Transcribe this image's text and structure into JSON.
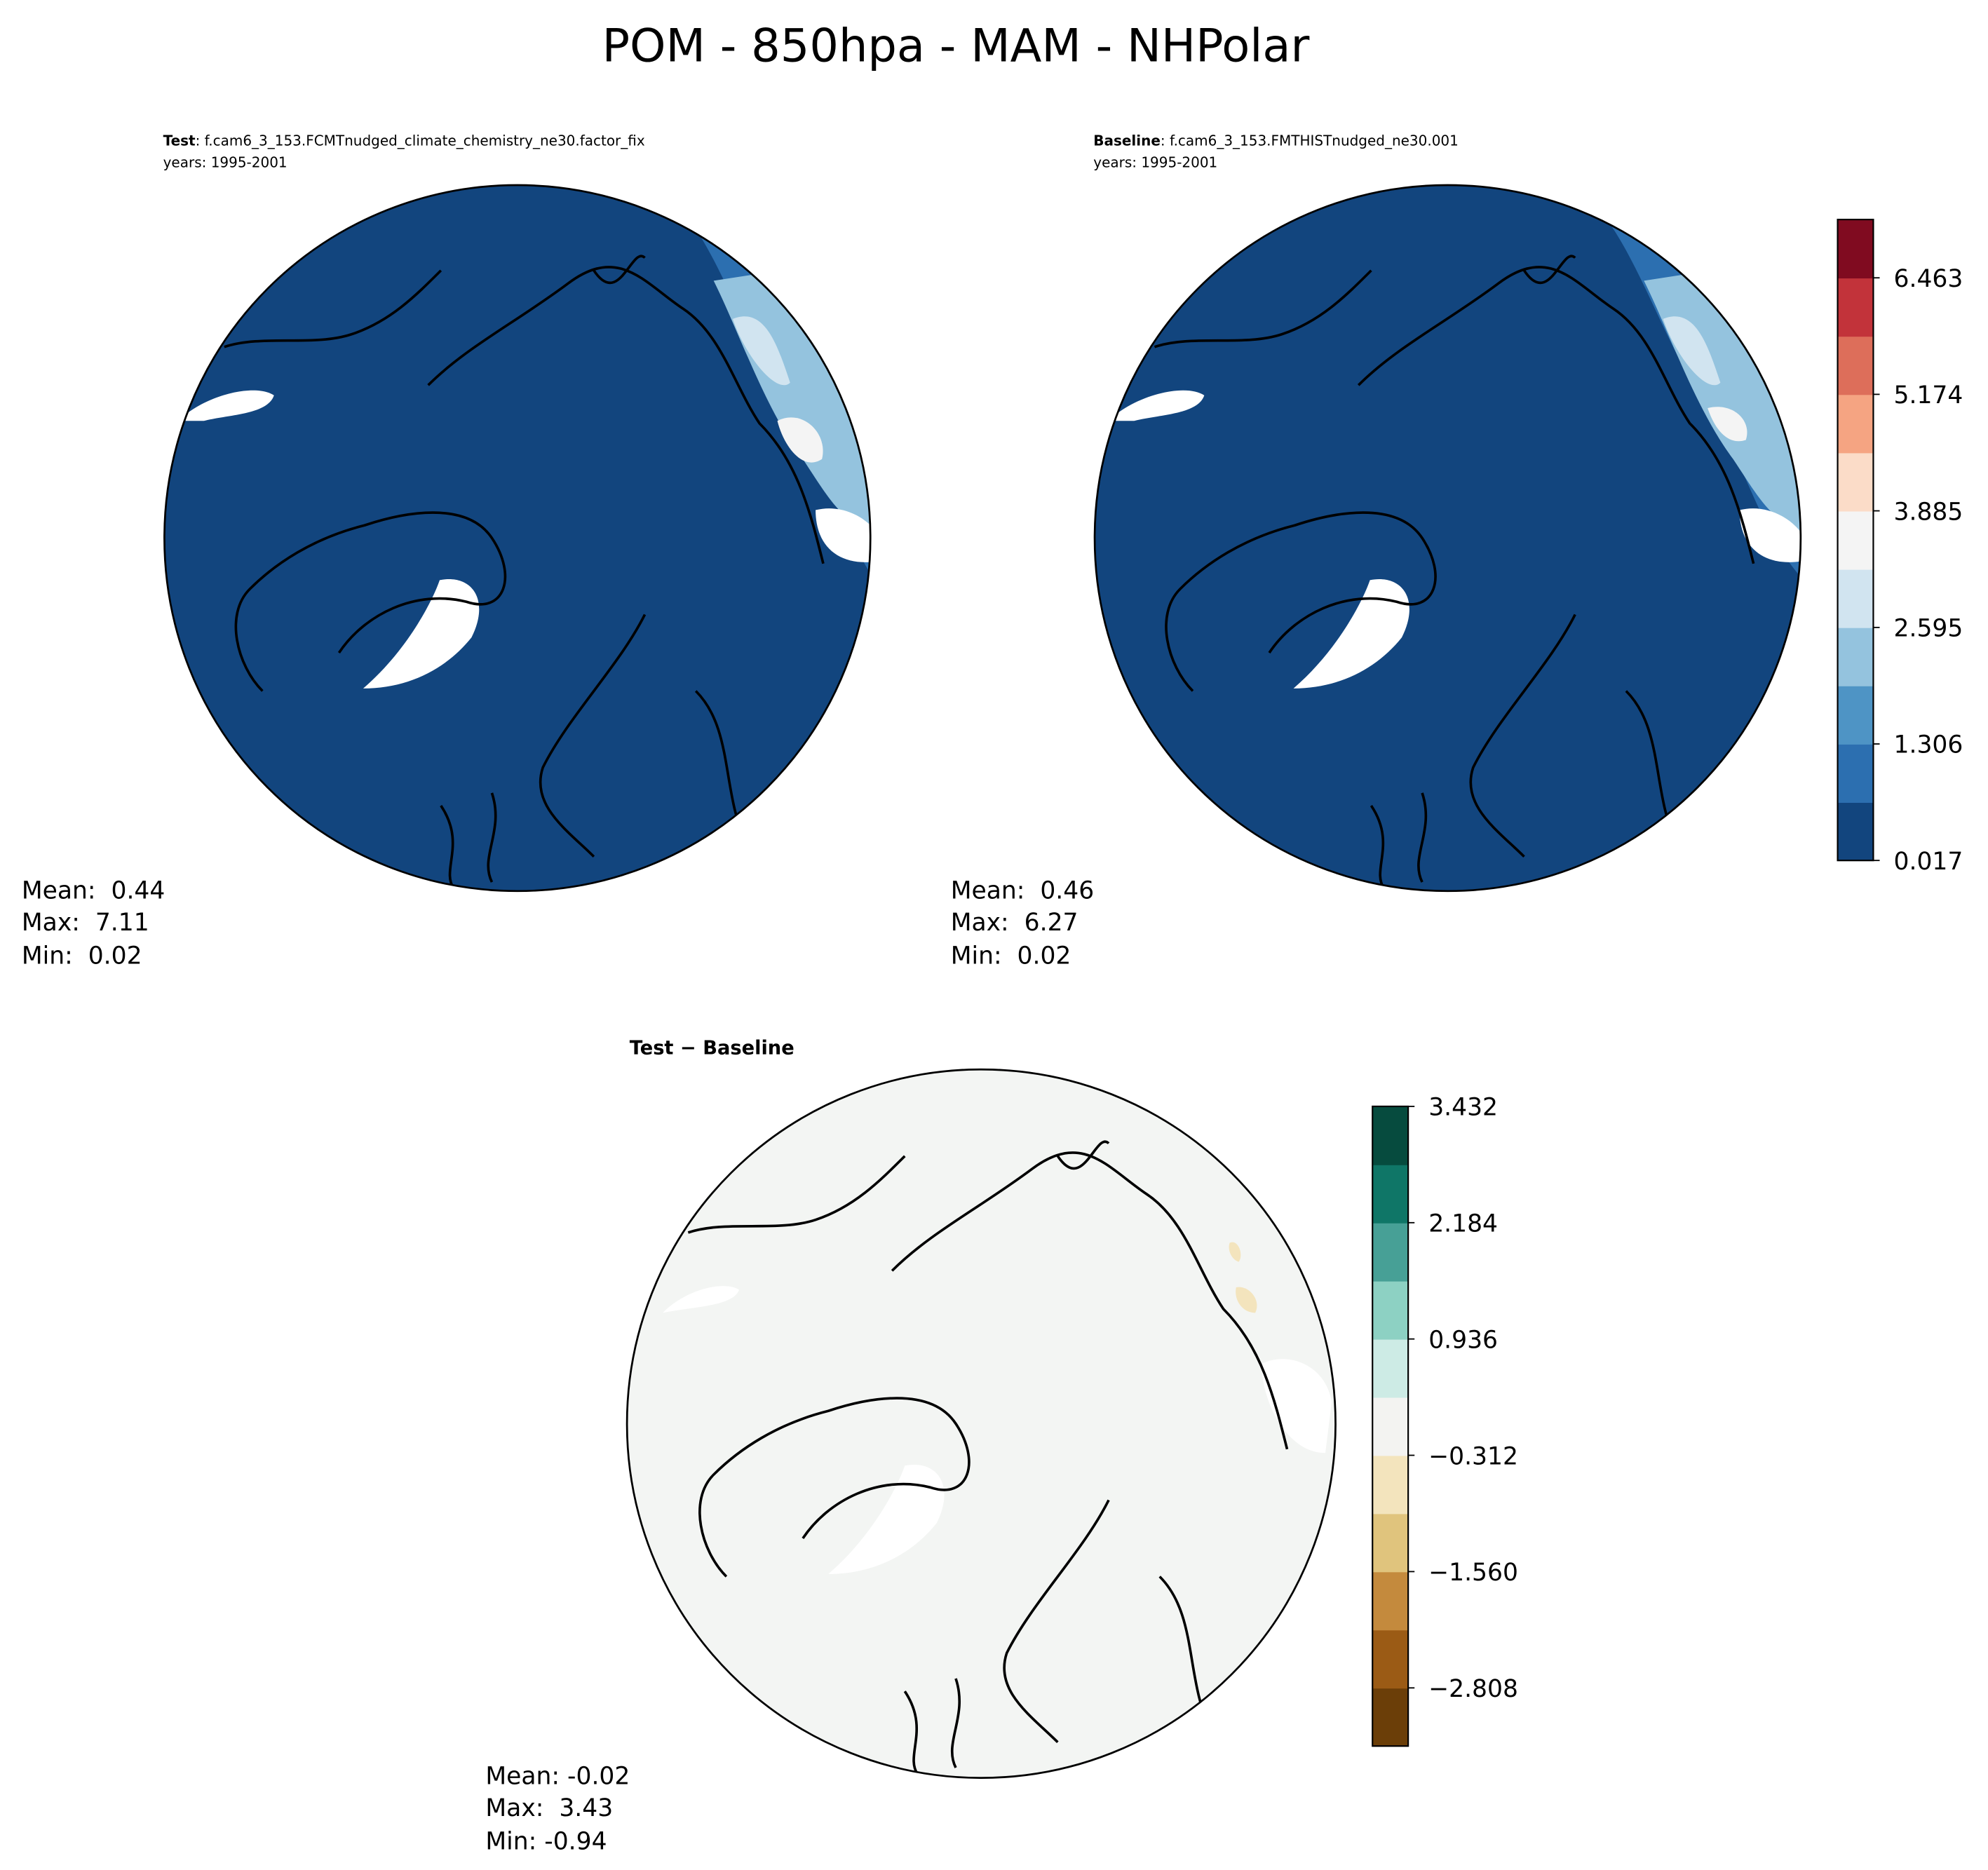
{
  "title": "POM - 850hpa - MAM - NHPolar",
  "panels": [
    {
      "title_bold": "Test",
      "title_rest": ": f.cam6_3_153.FCMTnudged_climate_chemistry_ne30.factor_fix",
      "years": "years: 1995-2001",
      "stats": [
        "Mean:  0.44",
        "Max:  7.11",
        "Min:  0.02"
      ]
    },
    {
      "title_bold": "Baseline",
      "title_rest": ": f.cam6_3_153.FMTHISTnudged_ne30.001",
      "years": "years: 1995-2001",
      "stats": [
        "Mean:  0.46",
        "Max:  6.27",
        "Min:  0.02"
      ]
    },
    {
      "title_bold": "Test − Baseline",
      "stats": [
        "Mean: -0.02",
        "Max:  3.43",
        "Min: -0.94"
      ]
    }
  ],
  "colorbars": [
    {
      "lim": [
        0.017,
        7.108
      ],
      "ticks": [
        0.017,
        1.306,
        2.595,
        3.885,
        5.174,
        6.463
      ],
      "colors": [
        "#12457e",
        "#2c6fb0",
        "#4e94c5",
        "#94c3de",
        "#d1e4f0",
        "#f4f4f4",
        "#fbdcc8",
        "#f5a482",
        "#dd6e5a",
        "#c2333a",
        "#800b20"
      ]
    },
    {
      "lim": [
        -3.432,
        3.432
      ],
      "ticks": [
        {
          "value": -2.808,
          "label": "−2.808"
        },
        {
          "value": -1.56,
          "label": "−1.560"
        },
        {
          "value": -0.312,
          "label": "−0.312"
        },
        0.936,
        2.184,
        3.432
      ],
      "colors": [
        "#6b3e08",
        "#9b5b15",
        "#c48a3d",
        "#e0c47d",
        "#f3e4bd",
        "#f3f3f1",
        "#cdebe5",
        "#8dd1c3",
        "#47a096",
        "#0f7667",
        "#064b3e"
      ]
    }
  ]
}
